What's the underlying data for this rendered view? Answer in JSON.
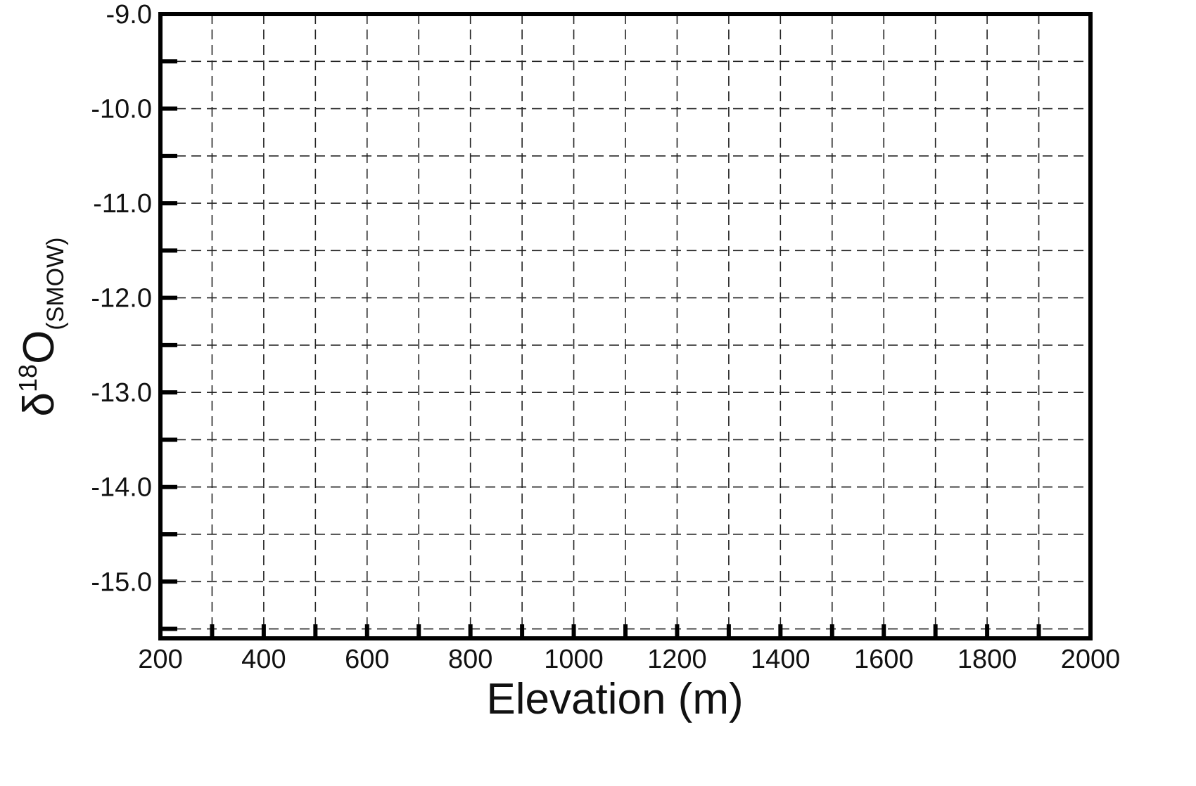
{
  "chart_data": {
    "type": "line",
    "title": "",
    "xlabel": "Elevation (m)",
    "ylabel": {
      "symbol": "δ",
      "mass_number": "18",
      "element": "O",
      "subscript": "(SMOW)"
    },
    "xlim": [
      200,
      2000
    ],
    "ylim": [
      -15.6,
      -9.0
    ],
    "x_tick_labels": [
      "200",
      "400",
      "600",
      "800",
      "1000",
      "1200",
      "1400",
      "1600",
      "1800",
      "2000"
    ],
    "x_tick_values": [
      200,
      400,
      600,
      800,
      1000,
      1200,
      1400,
      1600,
      1800,
      2000
    ],
    "x_minor_step": 100,
    "y_tick_labels": [
      "-9.0",
      "-10.0",
      "-11.0",
      "-12.0",
      "-13.0",
      "-14.0",
      "-15.0"
    ],
    "y_tick_values": [
      -9.0,
      -10.0,
      -11.0,
      -12.0,
      -13.0,
      -14.0,
      -15.0
    ],
    "y_minor_step": 0.5,
    "grid": true,
    "grid_style": "dashed",
    "series": [],
    "colors": {
      "frame": "#000000",
      "grid": "#222222",
      "text": "#111111"
    }
  }
}
